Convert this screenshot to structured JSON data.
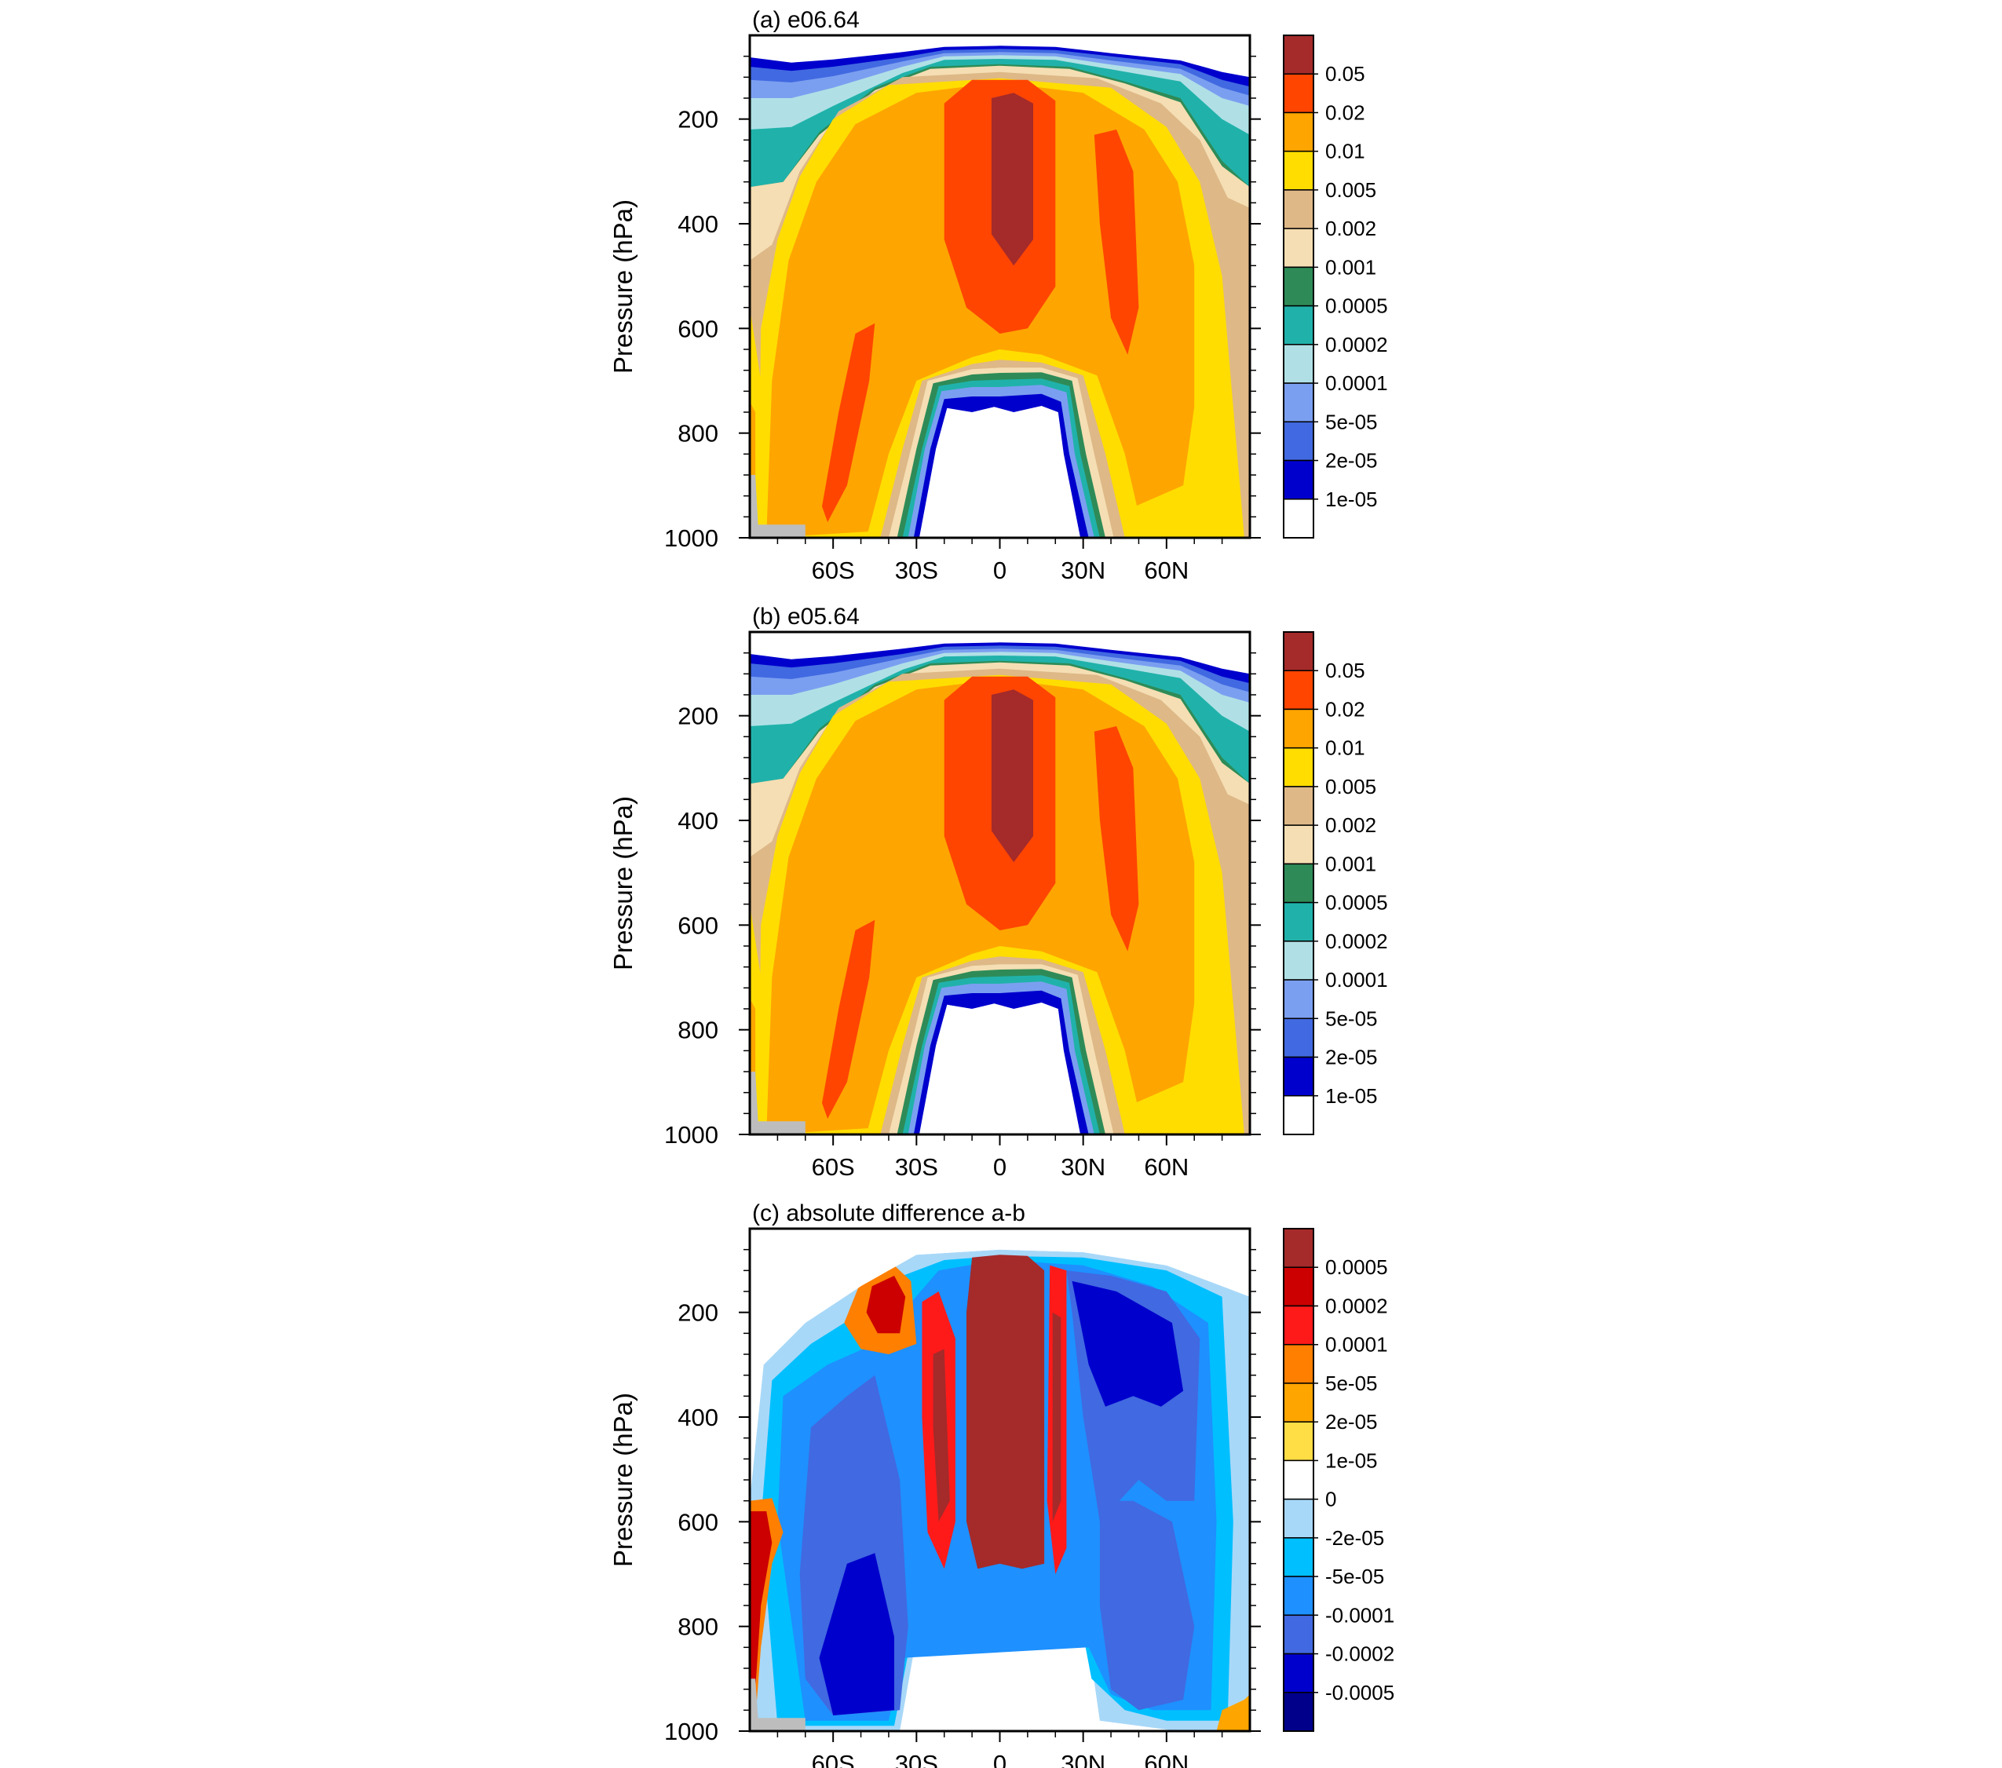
{
  "chart_data": [
    {
      "type": "heatmap",
      "title": "(a) e06.64",
      "xlabel": "",
      "ylabel": "Pressure (hPa)",
      "x_ticks": [
        "60S",
        "30S",
        "0",
        "30N",
        "60N"
      ],
      "x_tick_values": [
        -60,
        -30,
        0,
        30,
        60
      ],
      "xlim": [
        -90,
        90
      ],
      "y_ticks": [
        "200",
        "400",
        "600",
        "800",
        "1000"
      ],
      "y_tick_values": [
        200,
        400,
        600,
        800,
        1000
      ],
      "ylim": [
        1000,
        40
      ],
      "y_reversed": true,
      "colorbar": {
        "labels": [
          "0.05",
          "0.02",
          "0.01",
          "0.005",
          "0.002",
          "0.001",
          "0.0005",
          "0.0002",
          "0.0001",
          "5e-05",
          "2e-05",
          "1e-05"
        ],
        "colors": [
          "#a52a2a",
          "#ff4500",
          "#ffa500",
          "#ffdd00",
          "#deb887",
          "#f5deb3",
          "#2e8b57",
          "#20b2aa",
          "#b0e0e6",
          "#7b9ff0",
          "#4169e1",
          "#0000cd",
          "#ffffff"
        ]
      }
    },
    {
      "type": "heatmap",
      "title": "(b) e05.64",
      "xlabel": "",
      "ylabel": "Pressure (hPa)",
      "x_ticks": [
        "60S",
        "30S",
        "0",
        "30N",
        "60N"
      ],
      "x_tick_values": [
        -60,
        -30,
        0,
        30,
        60
      ],
      "xlim": [
        -90,
        90
      ],
      "y_ticks": [
        "200",
        "400",
        "600",
        "800",
        "1000"
      ],
      "y_tick_values": [
        200,
        400,
        600,
        800,
        1000
      ],
      "ylim": [
        1000,
        40
      ],
      "y_reversed": true,
      "colorbar": {
        "labels": [
          "0.05",
          "0.02",
          "0.01",
          "0.005",
          "0.002",
          "0.001",
          "0.0005",
          "0.0002",
          "0.0001",
          "5e-05",
          "2e-05",
          "1e-05"
        ],
        "colors": [
          "#a52a2a",
          "#ff4500",
          "#ffa500",
          "#ffdd00",
          "#deb887",
          "#f5deb3",
          "#2e8b57",
          "#20b2aa",
          "#b0e0e6",
          "#7b9ff0",
          "#4169e1",
          "#0000cd",
          "#ffffff"
        ]
      }
    },
    {
      "type": "heatmap",
      "title": "(c) absolute difference a-b",
      "xlabel": "",
      "ylabel": "Pressure (hPa)",
      "x_ticks": [
        "60S",
        "30S",
        "0",
        "30N",
        "60N"
      ],
      "x_tick_values": [
        -60,
        -30,
        0,
        30,
        60
      ],
      "xlim": [
        -90,
        90
      ],
      "y_ticks": [
        "200",
        "400",
        "600",
        "800",
        "1000"
      ],
      "y_tick_values": [
        200,
        400,
        600,
        800,
        1000
      ],
      "ylim": [
        1000,
        40
      ],
      "y_reversed": true,
      "colorbar": {
        "labels": [
          "0.0005",
          "0.0002",
          "0.0001",
          "5e-05",
          "2e-05",
          "1e-05",
          "0",
          "-2e-05",
          "-5e-05",
          "-0.0001",
          "-0.0002",
          "-0.0005"
        ],
        "colors": [
          "#a52a2a",
          "#cc0000",
          "#ff1a1a",
          "#ff7f00",
          "#ffa500",
          "#ffdd44",
          "#ffffff",
          "#a8d8f8",
          "#00bfff",
          "#1e90ff",
          "#4169e1",
          "#0000cd",
          "#00008b"
        ]
      }
    }
  ]
}
